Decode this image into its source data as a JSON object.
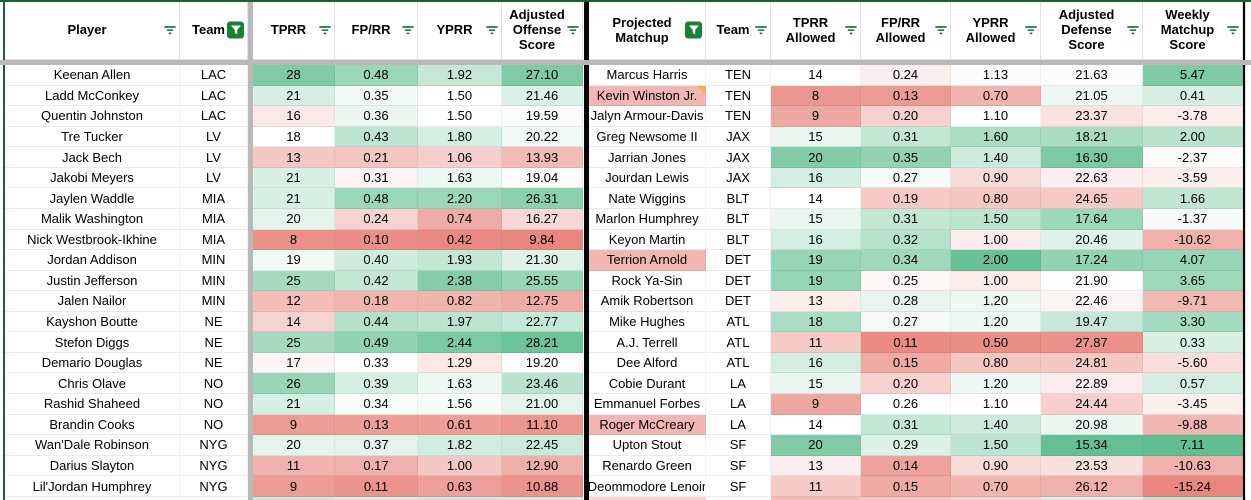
{
  "palette": {
    "heat_green": "#57BB8A",
    "heat_red": "#E67C73",
    "filter_green": "#188038",
    "freeze_gray": "#b9b9b9",
    "divider_black": "#060606",
    "border_green": "#1b5e38",
    "gridline": "#e2e2e2",
    "highlight_pink": "#f3b6b3",
    "note_orange": "#f9ab4a"
  },
  "offense_table": {
    "headers": [
      {
        "label": "Player",
        "filter": "inactive"
      },
      {
        "label": "Team",
        "filter": "active"
      },
      {
        "label": "TPRR",
        "filter": "inactive"
      },
      {
        "label": "FP/RR",
        "filter": "inactive"
      },
      {
        "label": "YPRR",
        "filter": "inactive"
      },
      {
        "label": "Adjusted Offense Score",
        "filter": "inactive"
      }
    ],
    "heat_scales": {
      "2": {
        "min": 6,
        "mid": 18,
        "max": 31,
        "dir": 1
      },
      "3": {
        "min": 0.06,
        "mid": 0.33,
        "max": 0.58,
        "dir": 1
      },
      "4": {
        "min": 0.3,
        "mid": 1.5,
        "max": 2.7,
        "dir": 1
      },
      "5": {
        "min": 9.0,
        "mid": 19.3,
        "max": 29.5,
        "dir": 1
      }
    },
    "rows": [
      {
        "cells": [
          "Keenan Allen",
          "LAC",
          "28",
          "0.48",
          "1.92",
          "27.10"
        ]
      },
      {
        "cells": [
          "Ladd McConkey",
          "LAC",
          "21",
          "0.35",
          "1.50",
          "21.46"
        ]
      },
      {
        "cells": [
          "Quentin Johnston",
          "LAC",
          "16",
          "0.36",
          "1.50",
          "19.59"
        ]
      },
      {
        "cells": [
          "Tre Tucker",
          "LV",
          "18",
          "0.43",
          "1.80",
          "20.22"
        ]
      },
      {
        "cells": [
          "Jack Bech",
          "LV",
          "13",
          "0.21",
          "1.06",
          "13.93"
        ]
      },
      {
        "cells": [
          "Jakobi Meyers",
          "LV",
          "21",
          "0.31",
          "1.63",
          "19.04"
        ]
      },
      {
        "cells": [
          "Jaylen Waddle",
          "MIA",
          "21",
          "0.48",
          "2.20",
          "26.31"
        ]
      },
      {
        "cells": [
          "Malik Washington",
          "MIA",
          "20",
          "0.24",
          "0.74",
          "16.27"
        ]
      },
      {
        "cells": [
          "Nick Westbrook-Ikhine",
          "MIA",
          "8",
          "0.10",
          "0.42",
          "9.84"
        ]
      },
      {
        "cells": [
          "Jordan Addison",
          "MIN",
          "19",
          "0.40",
          "1.93",
          "21.30"
        ]
      },
      {
        "cells": [
          "Justin Jefferson",
          "MIN",
          "25",
          "0.42",
          "2.38",
          "25.55"
        ]
      },
      {
        "cells": [
          "Jalen Nailor",
          "MIN",
          "12",
          "0.18",
          "0.82",
          "12.75"
        ]
      },
      {
        "cells": [
          "Kayshon Boutte",
          "NE",
          "14",
          "0.44",
          "1.97",
          "22.77"
        ]
      },
      {
        "cells": [
          "Stefon Diggs",
          "NE",
          "25",
          "0.49",
          "2.44",
          "28.21"
        ]
      },
      {
        "cells": [
          "Demario Douglas",
          "NE",
          "17",
          "0.33",
          "1.29",
          "19.20"
        ]
      },
      {
        "cells": [
          "Chris Olave",
          "NO",
          "26",
          "0.39",
          "1.63",
          "23.46"
        ]
      },
      {
        "cells": [
          "Rashid Shaheed",
          "NO",
          "21",
          "0.34",
          "1.56",
          "21.00"
        ]
      },
      {
        "cells": [
          "Brandin Cooks",
          "NO",
          "9",
          "0.13",
          "0.61",
          "11.10"
        ]
      },
      {
        "cells": [
          "Wan'Dale Robinson",
          "NYG",
          "20",
          "0.37",
          "1.82",
          "22.45"
        ]
      },
      {
        "cells": [
          "Darius Slayton",
          "NYG",
          "11",
          "0.17",
          "1.00",
          "12.90"
        ]
      },
      {
        "cells": [
          "Lil'Jordan Humphrey",
          "NYG",
          "9",
          "0.11",
          "0.63",
          "10.88"
        ]
      }
    ],
    "clipped_next_row_colors": [
      "#ffffff",
      "#ffffff",
      "#cdeadd",
      "#d6eee4",
      "#cdeadd",
      "#d4ecdf"
    ]
  },
  "defense_table": {
    "headers": [
      {
        "label": "Projected Matchup",
        "filter": "active"
      },
      {
        "label": "Team",
        "filter": "inactive"
      },
      {
        "label": "TPRR Allowed",
        "filter": "inactive"
      },
      {
        "label": "FP/RR Allowed",
        "filter": "inactive"
      },
      {
        "label": "YPRR Allowed",
        "filter": "inactive"
      },
      {
        "label": "Adjusted Defense Score",
        "filter": "inactive"
      },
      {
        "label": "Weekly Matchup Score",
        "filter": "inactive"
      }
    ],
    "heat_scales": {
      "2": {
        "min": 6.5,
        "mid": 14,
        "max": 22,
        "dir": 1
      },
      "3": {
        "min": 0.09,
        "mid": 0.26,
        "max": 0.4,
        "dir": 1
      },
      "4": {
        "min": 0.4,
        "mid": 1.1,
        "max": 2.1,
        "dir": 1
      },
      "5": {
        "min": 14.8,
        "mid": 21.8,
        "max": 29.0,
        "dir": -1
      },
      "6": {
        "min": -16.5,
        "mid": -1.8,
        "max": 7.6,
        "dir": 1
      }
    },
    "rows": [
      {
        "cells": [
          "Marcus Harris",
          "TEN",
          "14",
          "0.24",
          "1.13",
          "21.63",
          "5.47"
        ]
      },
      {
        "cells": [
          "Kevin Winston Jr.",
          "TEN",
          "8",
          "0.13",
          "0.70",
          "21.05",
          "0.41"
        ],
        "name_highlight": true,
        "note": true
      },
      {
        "cells": [
          "Jalyn Armour-Davis",
          "TEN",
          "9",
          "0.20",
          "1.10",
          "23.37",
          "-3.78"
        ]
      },
      {
        "cells": [
          "Greg Newsome II",
          "JAX",
          "15",
          "0.31",
          "1.60",
          "18.21",
          "2.00"
        ]
      },
      {
        "cells": [
          "Jarrian Jones",
          "JAX",
          "20",
          "0.35",
          "1.40",
          "16.30",
          "-2.37"
        ]
      },
      {
        "cells": [
          "Jourdan Lewis",
          "JAX",
          "16",
          "0.27",
          "0.90",
          "22.63",
          "-3.59"
        ]
      },
      {
        "cells": [
          "Nate Wiggins",
          "BLT",
          "14",
          "0.19",
          "0.80",
          "24.65",
          "1.66"
        ]
      },
      {
        "cells": [
          "Marlon Humphrey",
          "BLT",
          "15",
          "0.31",
          "1.50",
          "17.64",
          "-1.37"
        ]
      },
      {
        "cells": [
          "Keyon Martin",
          "BLT",
          "16",
          "0.32",
          "1.00",
          "20.46",
          "-10.62"
        ]
      },
      {
        "cells": [
          "Terrion Arnold",
          "DET",
          "19",
          "0.34",
          "2.00",
          "17.24",
          "4.07"
        ],
        "name_highlight": true
      },
      {
        "cells": [
          "Rock Ya-Sin",
          "DET",
          "19",
          "0.25",
          "1.00",
          "21.90",
          "3.65"
        ]
      },
      {
        "cells": [
          "Amik Robertson",
          "DET",
          "13",
          "0.28",
          "1.20",
          "22.46",
          "-9.71"
        ]
      },
      {
        "cells": [
          "Mike Hughes",
          "ATL",
          "18",
          "0.27",
          "1.20",
          "19.47",
          "3.30"
        ]
      },
      {
        "cells": [
          "A.J. Terrell",
          "ATL",
          "11",
          "0.11",
          "0.50",
          "27.87",
          "0.33"
        ]
      },
      {
        "cells": [
          "Dee Alford",
          "ATL",
          "16",
          "0.15",
          "0.80",
          "24.81",
          "-5.60"
        ]
      },
      {
        "cells": [
          "Cobie Durant",
          "LA",
          "15",
          "0.20",
          "1.20",
          "22.89",
          "0.57"
        ]
      },
      {
        "cells": [
          "Emmanuel Forbes",
          "LA",
          "9",
          "0.26",
          "1.10",
          "24.44",
          "-3.45"
        ]
      },
      {
        "cells": [
          "Roger McCreary",
          "LA",
          "14",
          "0.31",
          "1.40",
          "20.98",
          "-9.88"
        ],
        "name_highlight": true
      },
      {
        "cells": [
          "Upton Stout",
          "SF",
          "20",
          "0.29",
          "1.50",
          "15.34",
          "7.11"
        ]
      },
      {
        "cells": [
          "Renardo Green",
          "SF",
          "13",
          "0.14",
          "0.90",
          "23.53",
          "-10.63"
        ]
      },
      {
        "cells": [
          "Deommodore Lenoir",
          "SF",
          "11",
          "0.15",
          "0.70",
          "26.12",
          "-15.24"
        ]
      }
    ],
    "clipped_next_row_colors": [
      "#f7d8d6",
      "#ffffff",
      "#f2bcb7",
      "#f4c5c1",
      "#f7d3d0",
      "#d6eee4",
      "#bfe3d2"
    ]
  }
}
